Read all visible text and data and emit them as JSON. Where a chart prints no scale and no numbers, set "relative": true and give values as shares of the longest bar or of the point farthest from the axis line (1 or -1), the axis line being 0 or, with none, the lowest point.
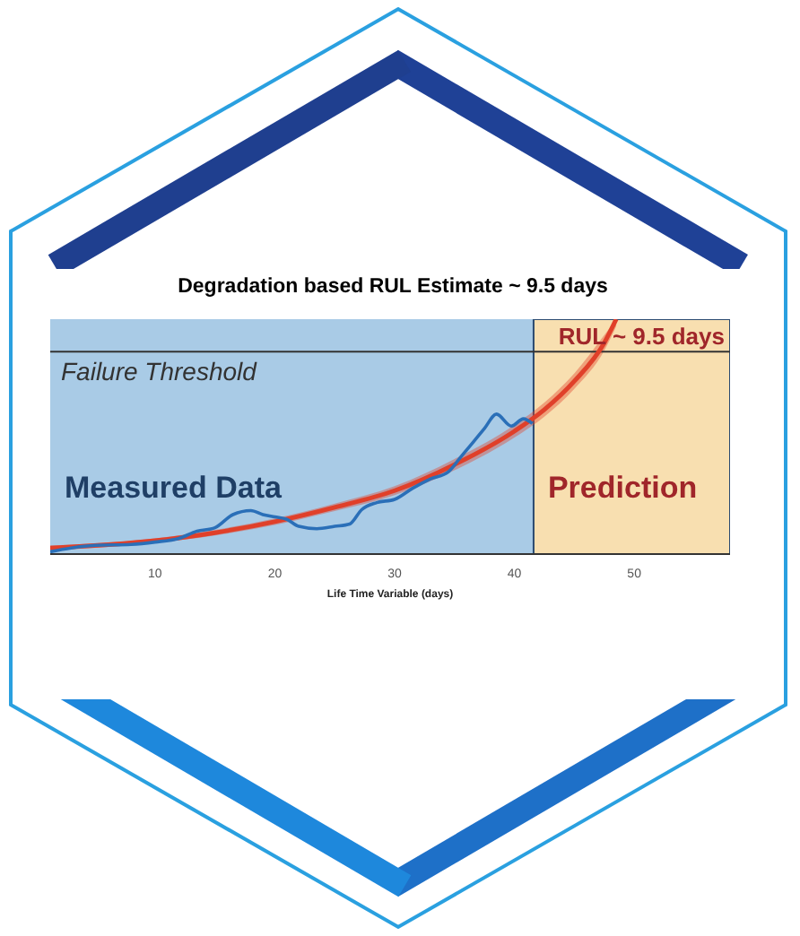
{
  "chart_data": {
    "type": "line",
    "title": "Degradation based RUL Estimate ~ 9.5 days",
    "xlabel": "Life Time Variable (days)",
    "relative": true,
    "xlim": [
      1.25,
      58
    ],
    "xticks": [
      10,
      20,
      30,
      40,
      50
    ],
    "series": [
      {
        "color": "#2a6fb8",
        "x": [
          1.25,
          3,
          5,
          8,
          10,
          12,
          13.5,
          15,
          16.5,
          18,
          19,
          20,
          21,
          22,
          23.5,
          25,
          26.25,
          27.25,
          28.5,
          30,
          31.5,
          33,
          34.5,
          35.5,
          36.5,
          37.5,
          38.5,
          39.75,
          40.75,
          41.5
        ],
        "values": [
          0.01,
          0.026,
          0.037,
          0.041,
          0.051,
          0.067,
          0.097,
          0.112,
          0.168,
          0.185,
          0.168,
          0.158,
          0.148,
          0.118,
          0.108,
          0.118,
          0.128,
          0.189,
          0.219,
          0.233,
          0.28,
          0.32,
          0.351,
          0.412,
          0.473,
          0.535,
          0.596,
          0.545,
          0.576,
          0.556
        ]
      },
      {
        "color": "#e0402a",
        "x": [
          1.25,
          10,
          15,
          20,
          25,
          30,
          35,
          40,
          42.5,
          45,
          47.5,
          48.5
        ],
        "values": [
          0.026,
          0.057,
          0.091,
          0.138,
          0.199,
          0.27,
          0.381,
          0.523,
          0.615,
          0.736,
          0.899,
          1.0
        ],
        "lower": [
          0.016,
          0.047,
          0.079,
          0.124,
          0.183,
          0.251,
          0.357,
          0.496,
          0.585,
          0.703,
          0.866,
          0.97
        ],
        "upper": [
          0.036,
          0.067,
          0.103,
          0.152,
          0.215,
          0.289,
          0.405,
          0.55,
          0.645,
          0.769,
          0.932,
          1.0
        ]
      }
    ],
    "ref_lines": [
      {
        "axis": "y",
        "value": 0.862,
        "label": "Failure Threshold",
        "color": "#333333"
      }
    ],
    "bands": [
      {
        "axis": "x",
        "from": 1.25,
        "to": 41.6,
        "label": "Measured Data",
        "color": "#a9cbe6"
      },
      {
        "axis": "x",
        "from": 41.6,
        "to": 58,
        "label": "Prediction",
        "color": "#f8dfb0"
      }
    ],
    "annotations": [
      "RUL ~ 9.5 days"
    ]
  }
}
